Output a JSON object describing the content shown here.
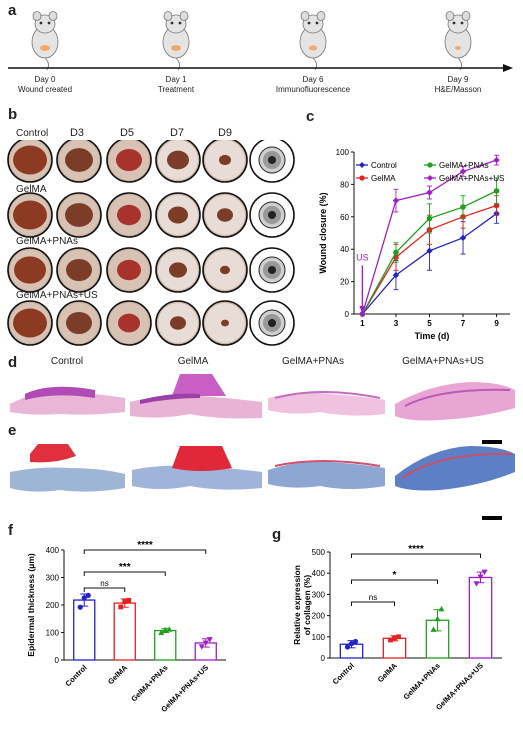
{
  "panels": {
    "a": "a",
    "b": "b",
    "c": "c",
    "d": "d",
    "e": "e",
    "f": "f",
    "g": "g"
  },
  "timeline": [
    {
      "day": "Day 0",
      "event": "Wound created"
    },
    {
      "day": "Day 1",
      "event": "Treatment"
    },
    {
      "day": "Day 6",
      "event": "Immunofluorescence"
    },
    {
      "day": "Day 9",
      "event": "H&E/Masson"
    }
  ],
  "photo_grid": {
    "columns": [
      "D3",
      "D5",
      "D7",
      "D9"
    ],
    "rows": [
      "Control",
      "GelMA",
      "GelMA+PNAs",
      "GelMA+PNAs+US"
    ]
  },
  "histology": {
    "groups": [
      "Control",
      "GelMA",
      "GelMA+PNAs",
      "GelMA+PNAs+US"
    ]
  },
  "colors": {
    "control": "#2323c8",
    "gelma": "#e62020",
    "pnas": "#1fa01f",
    "us": "#a020c8"
  },
  "chart_data": [
    {
      "type": "line",
      "panel": "c",
      "xlabel": "Time (d)",
      "ylabel": "Wound closure (%)",
      "x": [
        1,
        3,
        5,
        7,
        9
      ],
      "xlim": [
        0.5,
        9.8
      ],
      "ylim": [
        0,
        100
      ],
      "xticks": [
        "1",
        "3",
        "5",
        "7",
        "9"
      ],
      "yticks": [
        "0",
        "20",
        "40",
        "60",
        "80",
        "100"
      ],
      "annotation": "US",
      "legend_position": "top-left",
      "series": [
        {
          "name": "Control",
          "color": "#2323c8",
          "marker": "diamond",
          "values": [
            0,
            24,
            39,
            47,
            62
          ],
          "errors": [
            0,
            9,
            12,
            10,
            6
          ]
        },
        {
          "name": "GelMA",
          "color": "#e62020",
          "marker": "circle",
          "values": [
            0,
            35,
            52,
            60,
            67
          ],
          "errors": [
            0,
            8,
            9,
            7,
            6
          ]
        },
        {
          "name": "GelMA+PNAs",
          "color": "#1fa01f",
          "marker": "circle",
          "values": [
            0,
            38,
            59,
            66,
            76
          ],
          "errors": [
            0,
            6,
            9,
            7,
            8
          ]
        },
        {
          "name": "GelMA+PNAs+US",
          "color": "#a020c8",
          "marker": "diamond",
          "values": [
            0,
            70,
            75,
            88,
            95
          ],
          "errors": [
            0,
            7,
            4,
            3,
            3
          ]
        }
      ]
    },
    {
      "type": "bar",
      "panel": "f",
      "ylabel": "Epidermal thickness (μm)",
      "categories": [
        "Control",
        "GelMA",
        "GelMA+PNAs",
        "GelMA+PNAs+US"
      ],
      "values": [
        218,
        207,
        107,
        62
      ],
      "errors": [
        22,
        15,
        7,
        15
      ],
      "points": [
        [
          192,
          226,
          235
        ],
        [
          193,
          212,
          217
        ],
        [
          100,
          110,
          112
        ],
        [
          48,
          62,
          74
        ]
      ],
      "ylim": [
        0,
        400
      ],
      "yticks": [
        "0",
        "100",
        "200",
        "300",
        "400"
      ],
      "significance": [
        {
          "from": 0,
          "to": 1,
          "label": "ns"
        },
        {
          "from": 0,
          "to": 2,
          "label": "***"
        },
        {
          "from": 0,
          "to": 3,
          "label": "****"
        }
      ]
    },
    {
      "type": "bar",
      "panel": "g",
      "ylabel": "Relative expression of collagen (%)",
      "categories": [
        "Control",
        "GelMA",
        "GelMA+PNAs",
        "GelMA+PNAs+US"
      ],
      "values": [
        65,
        93,
        178,
        380
      ],
      "errors": [
        17,
        12,
        50,
        25
      ],
      "points": [
        [
          52,
          68,
          78
        ],
        [
          85,
          95,
          100
        ],
        [
          135,
          185,
          232
        ],
        [
          350,
          382,
          405
        ]
      ],
      "ylim": [
        0,
        500
      ],
      "yticks": [
        "0",
        "100",
        "200",
        "300",
        "400",
        "500"
      ],
      "significance": [
        {
          "from": 0,
          "to": 1,
          "label": "ns"
        },
        {
          "from": 0,
          "to": 2,
          "label": "*"
        },
        {
          "from": 0,
          "to": 3,
          "label": "****"
        }
      ]
    }
  ]
}
